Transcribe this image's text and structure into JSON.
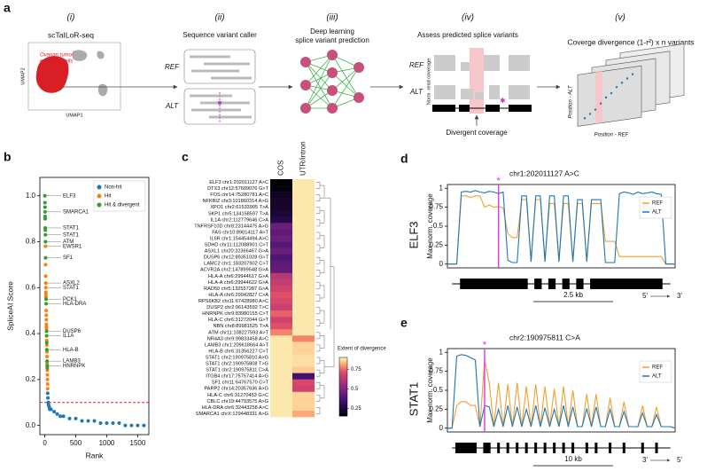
{
  "schematic": {
    "panel": "a",
    "steps": [
      "(i)",
      "(ii)",
      "(iii)",
      "(iv)",
      "(v)"
    ],
    "method": "scTaILoR-seq",
    "cell_label": [
      "Ovarian tumor",
      "epithelial cells"
    ],
    "umap_y": "UMAP2",
    "umap_x": "UMAP1",
    "caller": "Sequence variant caller",
    "ref": "REF",
    "alt": "ALT",
    "predict": [
      "Deep learning",
      "splice variant prediction"
    ],
    "assess": "Assess predicted splice variants",
    "ref2": "REF",
    "alt2": "ALT",
    "coverage_axis": "Norm. read coverage",
    "divergent": "Divergent coverage",
    "divergence": "Coverge divergence (1-r²) x n variants",
    "pos_alt": "Position - ALT",
    "pos_ref": "Position - REF"
  },
  "chart_data": [
    {
      "type": "scatter",
      "panel": "b",
      "xlabel": "Rank",
      "ylabel": "SpliceAI Score",
      "xlim": [
        -80,
        1680
      ],
      "ylim": [
        -0.04,
        1.08
      ],
      "xticks": [
        0,
        500,
        1000,
        1500
      ],
      "yticks": [
        {
          "value": 0,
          "label": "0.0"
        },
        {
          "value": 0.2,
          "label": "0.2"
        },
        {
          "value": 0.4,
          "label": "0.4"
        },
        {
          "value": 0.6,
          "label": "0.6"
        },
        {
          "value": 0.8,
          "label": "0.8"
        },
        {
          "value": 1,
          "label": "1.0"
        }
      ],
      "threshold": 0.1,
      "threshold_color": "#d62728",
      "legend": "upper right",
      "series": [
        {
          "name": "Non-hit",
          "color": "#1f77b4",
          "x": [
            46,
            50,
            55,
            60,
            70,
            80,
            100,
            150,
            200,
            250,
            300,
            400,
            500,
            600,
            700,
            800,
            900,
            1000,
            1100,
            1200,
            1300,
            1400,
            1500,
            1600
          ],
          "values": [
            0.14,
            0.12,
            0.1,
            0.09,
            0.08,
            0.07,
            0.07,
            0.06,
            0.05,
            0.04,
            0.04,
            0.03,
            0.03,
            0.02,
            0.02,
            0.02,
            0.01,
            0.01,
            0.01,
            0.01,
            0,
            0,
            0,
            0
          ]
        },
        {
          "name": "Hit",
          "color": "#ff7f0e",
          "x": [
            11,
            13,
            14,
            15,
            16,
            17,
            18,
            19,
            22,
            23,
            24,
            25,
            26,
            27,
            30,
            32,
            34,
            35,
            37,
            39,
            41,
            42,
            43,
            44,
            45
          ],
          "values": [
            0.78,
            0.7,
            0.65,
            0.62,
            0.6,
            0.58,
            0.57,
            0.56,
            0.5,
            0.48,
            0.46,
            0.44,
            0.43,
            0.42,
            0.37,
            0.35,
            0.32,
            0.3,
            0.27,
            0.26,
            0.24,
            0.22,
            0.2,
            0.18,
            0.16
          ]
        },
        {
          "name": "Hit & divergent",
          "color": "#2ca02c",
          "x": [
            1,
            2,
            3,
            4,
            5,
            6,
            7,
            8,
            9,
            10,
            12,
            20,
            21,
            28,
            29,
            31,
            33,
            36,
            38,
            40
          ],
          "values": [
            1.0,
            0.97,
            0.95,
            0.93,
            0.91,
            0.9,
            0.86,
            0.85,
            0.83,
            0.8,
            0.73,
            0.55,
            0.53,
            0.41,
            0.39,
            0.36,
            0.33,
            0.28,
            0.26,
            0.25
          ]
        }
      ],
      "annotations": [
        {
          "text": "ELF3",
          "x": 1,
          "y": 1.0
        },
        {
          "text": "SMARCA1",
          "x": 4,
          "y": 0.93
        },
        {
          "text": "STAT1",
          "x": 7,
          "y": 0.86
        },
        {
          "text": "STAT1",
          "x": 9,
          "y": 0.83
        },
        {
          "text": "ATM",
          "x": 10,
          "y": 0.8
        },
        {
          "text": "EWSR1",
          "x": 11,
          "y": 0.78
        },
        {
          "text": "SF1",
          "x": 12,
          "y": 0.73
        },
        {
          "text": "ASXL2",
          "x": 15,
          "y": 0.62
        },
        {
          "text": "STAT1",
          "x": 16,
          "y": 0.6
        },
        {
          "text": "PCK1",
          "x": 20,
          "y": 0.55
        },
        {
          "text": "HLA-DRA",
          "x": 21,
          "y": 0.53
        },
        {
          "text": "DUSP6",
          "x": 28,
          "y": 0.41
        },
        {
          "text": "IL1A",
          "x": 29,
          "y": 0.39
        },
        {
          "text": "HLA-B",
          "x": 33,
          "y": 0.33
        },
        {
          "text": "LAMB3",
          "x": 36,
          "y": 0.28
        },
        {
          "text": "HNRNPK",
          "x": 38,
          "y": 0.26
        }
      ]
    },
    {
      "type": "heatmap",
      "panel": "c",
      "columns": [
        "COS",
        "UTR/intron"
      ],
      "rows": [
        "ELF3 chr1:202011127 A>C",
        "DTX3 chr12:57609076 G>T",
        "FOS chr14:75280781 A>C",
        "NFKBIZ chr3:101860314 A>G",
        "XPO1 chr2:61533905 T>A",
        "SKP1 chr5:134158597 T>A",
        "IL1A chr2:112779646 C>A",
        "TNFRSF10D chr8:23144475 A>G",
        "FAS chr10:89014117 A>T",
        "IL6R chr1:154454494 A>C",
        "SDHD chr11:112088901 C>T",
        "ASXL1 chr20:32366467 G>A",
        "DUSP6 chr12:89351028 G>T",
        "LAMC2 chr1:183207902 C>T",
        "ACVR2A chr2:147899548 G>A",
        "HLA-A chr6:29944617 G>A",
        "HLA-A chr6:29944622 G>A",
        "RAD50 chr5:132557287 G>A",
        "HLA-A chr6:29942827 C>A",
        "RPS6KB2 chr11:67428980 A>C",
        "DUSP2 chr2:96143592 T>C",
        "HNRNPK chr9:83980155 C>T",
        "HLA-C chr6:31272044 G>T",
        "NBN chr8:89981525 T>A",
        "ATM chr11:108227593 A>T",
        "NR4A3 chr9:99833458 A>C",
        "LAMB3 chr1:209618664 A>T",
        "HLA-B chr6:31356227 C>T",
        "STAT1 chr2:190975810 A>G",
        "STAT1 chr2:190975808 T>G",
        "STAT1 chr2:190975811 C>A",
        "ITGB4 chr17:75757414 A>G",
        "SF1 chr11:64767570 C>T",
        "PARP2 chr14:20357636 A>G",
        "HLA-C chr6:31270453 G>C",
        "CBLC chr19:44793575 A>G",
        "HLA-DRA chr6:32443258 A>C",
        "SMARCA1 chrX:129448331 A>G"
      ],
      "values": [
        [
          0.15,
          0.88
        ],
        [
          0.17,
          0.88
        ],
        [
          0.2,
          0.88
        ],
        [
          0.22,
          0.88
        ],
        [
          0.22,
          0.88
        ],
        [
          0.24,
          0.88
        ],
        [
          0.27,
          0.88
        ],
        [
          0.45,
          0.88
        ],
        [
          0.42,
          0.88
        ],
        [
          0.45,
          0.88
        ],
        [
          0.4,
          0.88
        ],
        [
          0.45,
          0.88
        ],
        [
          0.38,
          0.88
        ],
        [
          0.42,
          0.88
        ],
        [
          0.43,
          0.88
        ],
        [
          0.62,
          0.88
        ],
        [
          0.65,
          0.88
        ],
        [
          0.68,
          0.88
        ],
        [
          0.72,
          0.88
        ],
        [
          0.7,
          0.88
        ],
        [
          0.66,
          0.88
        ],
        [
          0.74,
          0.88
        ],
        [
          0.68,
          0.88
        ],
        [
          0.72,
          0.88
        ],
        [
          0.78,
          0.88
        ],
        [
          0.88,
          0.78
        ],
        [
          0.88,
          0.86
        ],
        [
          0.88,
          0.86
        ],
        [
          0.88,
          0.87
        ],
        [
          0.88,
          0.87
        ],
        [
          0.88,
          0.85
        ],
        [
          0.88,
          0.35
        ],
        [
          0.88,
          0.7
        ],
        [
          0.88,
          0.68
        ],
        [
          0.88,
          0.86
        ],
        [
          0.88,
          0.86
        ],
        [
          0.88,
          0.86
        ],
        [
          0.88,
          0.82
        ]
      ],
      "colormap": "magma",
      "clim": [
        0.15,
        0.9
      ],
      "cticks": [
        0.25,
        0.5,
        0.75
      ],
      "clabel": "Extent of divergence"
    },
    {
      "type": "line",
      "panel": "d",
      "gene": "ELF3",
      "title": "chr1:202011127 A>C",
      "ylabel": "Max-norm. coverage",
      "ylim": [
        -0.05,
        1.05
      ],
      "yticks": [
        0,
        0.25,
        0.5,
        0.75,
        1
      ],
      "legend": "upper right",
      "variant_index": 11,
      "variant_marker": "*",
      "variant_color": "#e040e0",
      "scalebar": "2.5 kb",
      "strand": [
        "5'",
        "3'"
      ],
      "series": [
        {
          "name": "REF",
          "color": "#f0a030",
          "values": [
            0,
            0,
            0,
            0.9,
            0.9,
            0.88,
            0.9,
            0.9,
            0.75,
            0.78,
            0.75,
            0.76,
            0.74,
            0.4,
            0.35,
            0.35,
            0.85,
            0.85,
            0.05,
            0.85,
            0.85,
            0.05,
            0.8,
            0.8,
            0.05,
            0.8,
            0.8,
            0.05,
            0.8,
            0.8,
            0.05,
            0.8,
            0.8,
            0.8,
            0.3,
            0.3,
            0.3,
            0.1,
            0.1,
            0.1,
            0.1,
            0.1,
            0.1,
            0.1,
            0.1,
            0.1,
            0.1,
            0,
            0,
            0
          ]
        },
        {
          "name": "ALT",
          "color": "#1f77b4",
          "values": [
            0,
            0,
            0,
            0.95,
            0.96,
            0.95,
            0.97,
            0.95,
            0.94,
            0.96,
            0.95,
            0.93,
            0.95,
            0.05,
            0.02,
            0.02,
            0.9,
            0.9,
            0.03,
            0.9,
            0.9,
            0.03,
            0.9,
            0.9,
            0.03,
            0.9,
            0.9,
            0.03,
            0.85,
            0.85,
            0.03,
            0.85,
            0.85,
            0.85,
            0.02,
            0.02,
            0.02,
            0.93,
            0.95,
            0.94,
            0.92,
            0.95,
            0.93,
            0.94,
            0.95,
            0.93,
            0.92,
            0,
            0,
            0
          ]
        }
      ]
    },
    {
      "type": "line",
      "panel": "e",
      "gene": "STAT1",
      "title": "chr2:190975811 C>A",
      "ylabel": "Max-norm. coverage",
      "ylim": [
        -0.05,
        1.05
      ],
      "yticks": [
        0,
        0.25,
        0.5,
        0.75,
        1
      ],
      "legend": "upper right",
      "variant_index": 8,
      "variant_marker": "*",
      "variant_color": "#e040e0",
      "scalebar": "10 kb",
      "strand": [
        "3'",
        "5'"
      ],
      "series": [
        {
          "name": "REF",
          "color": "#f0a030",
          "values": [
            0,
            0,
            0.3,
            0.35,
            0.35,
            0.3,
            0.3,
            0.02,
            0.9,
            0.6,
            0.02,
            0.6,
            0.02,
            0.58,
            0.02,
            0.6,
            0.02,
            0.55,
            0.02,
            0.58,
            0.02,
            0.55,
            0.02,
            0.52,
            0.02,
            0.55,
            0.02,
            0.5,
            0.02,
            0.02,
            0.45,
            0.02,
            0.45,
            0.02,
            0.02,
            0.4,
            0.02,
            0.02,
            0.35,
            0.02,
            0.02,
            0.02,
            0.3,
            0.02,
            0.02,
            0.28,
            0.02,
            0.02,
            0.02,
            0
          ]
        },
        {
          "name": "ALT",
          "color": "#1f77b4",
          "values": [
            0,
            0,
            0.95,
            0.97,
            0.96,
            0.93,
            0.9,
            0.02,
            0.3,
            0.28,
            0.02,
            0.25,
            0.02,
            0.3,
            0.02,
            0.28,
            0.02,
            0.25,
            0.02,
            0.3,
            0.02,
            0.27,
            0.02,
            0.25,
            0.02,
            0.3,
            0.02,
            0.28,
            0.02,
            0.02,
            0.26,
            0.02,
            0.28,
            0.02,
            0.02,
            0.25,
            0.02,
            0.02,
            0.22,
            0.02,
            0.02,
            0.02,
            0.2,
            0.02,
            0.02,
            0.18,
            0.02,
            0.02,
            0.02,
            0
          ]
        }
      ]
    }
  ]
}
